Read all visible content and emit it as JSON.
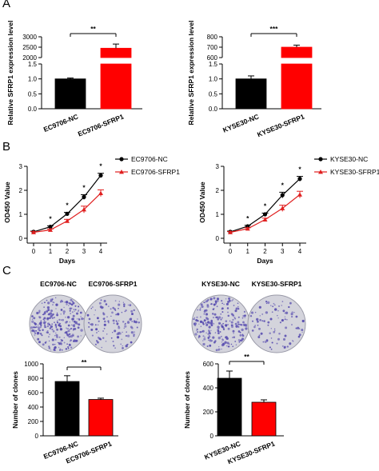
{
  "panels": {
    "a": "A",
    "b": "B",
    "c": "C"
  },
  "colors": {
    "nc": "#000000",
    "sfrp1": "#ff0000",
    "line_nc": "#000000",
    "line_sfrp1": "#e02020",
    "colony": "#5a4fb0",
    "dish": "#d4d4dc"
  },
  "chart_data": [
    {
      "id": "A-left",
      "type": "bar",
      "categories": [
        "EC9706-NC",
        "EC9706-SFRP1"
      ],
      "values": [
        1.0,
        2450
      ],
      "errors": [
        0.03,
        200
      ],
      "ylabel": "Relative SFRP1 expression level",
      "y_lower_ticks": [
        "0.0",
        "0.5",
        "1.0",
        "1.5"
      ],
      "y_upper_ticks": [
        "2000",
        "2500",
        "3000"
      ],
      "significance": "**"
    },
    {
      "id": "A-right",
      "type": "bar",
      "categories": [
        "KYSE30-NC",
        "KYSE30-SFRP1"
      ],
      "values": [
        1.0,
        700
      ],
      "errors": [
        0.1,
        20
      ],
      "ylabel": "Relative SFRP1 expression level",
      "y_lower_ticks": [
        "0.0",
        "0.5",
        "1.0",
        "1.5"
      ],
      "y_upper_ticks": [
        "600",
        "700",
        "800"
      ],
      "significance": "***"
    },
    {
      "id": "B-left",
      "type": "line",
      "x": [
        0,
        1,
        2,
        3,
        4
      ],
      "xlabel": "Days",
      "ylabel": "OD450 Value",
      "ylim": [
        0,
        3
      ],
      "y_ticks": [
        "0",
        "1",
        "2",
        "3"
      ],
      "x_ticks": [
        "0",
        "1",
        "2",
        "3",
        "4"
      ],
      "series": [
        {
          "name": "EC9706-NC",
          "values": [
            0.27,
            0.48,
            1.02,
            1.72,
            2.62
          ],
          "errors": [
            0.03,
            0.04,
            0.06,
            0.1,
            0.09
          ]
        },
        {
          "name": "EC9706-SFRP1",
          "values": [
            0.25,
            0.35,
            0.72,
            1.2,
            1.88
          ],
          "errors": [
            0.03,
            0.04,
            0.07,
            0.14,
            0.14
          ]
        }
      ],
      "stars": [
        "*",
        "*",
        "*",
        "*"
      ]
    },
    {
      "id": "B-right",
      "type": "line",
      "x": [
        0,
        1,
        2,
        3,
        4
      ],
      "xlabel": "Days",
      "ylabel": "OD450 Value",
      "ylim": [
        0,
        3
      ],
      "y_ticks": [
        "0",
        "1",
        "2",
        "3"
      ],
      "x_ticks": [
        "0",
        "1",
        "2",
        "3",
        "4"
      ],
      "series": [
        {
          "name": "KYSE30-NC",
          "values": [
            0.27,
            0.5,
            1.0,
            1.8,
            2.48
          ],
          "errors": [
            0.03,
            0.04,
            0.05,
            0.12,
            0.1
          ]
        },
        {
          "name": "KYSE30-SFRP1",
          "values": [
            0.25,
            0.4,
            0.78,
            1.25,
            1.82
          ],
          "errors": [
            0.03,
            0.04,
            0.06,
            0.13,
            0.14
          ]
        }
      ],
      "stars": [
        "*",
        "*",
        "*",
        "*"
      ]
    },
    {
      "id": "C-left",
      "type": "bar",
      "categories": [
        "EC9706-NC",
        "EC9706-SFRP1"
      ],
      "values": [
        755,
        505
      ],
      "errors": [
        80,
        18
      ],
      "ylabel": "Number of clones",
      "ylim": [
        0,
        1000
      ],
      "y_ticks": [
        "0",
        "200",
        "400",
        "600",
        "800",
        "1000"
      ],
      "significance": "**",
      "image_titles": [
        "EC9706-NC",
        "EC9706-SFRP1"
      ]
    },
    {
      "id": "C-right",
      "type": "bar",
      "categories": [
        "KYSE30-NC",
        "KYSE30-SFRP1"
      ],
      "values": [
        480,
        280
      ],
      "errors": [
        60,
        20
      ],
      "ylabel": "Number of clones",
      "ylim": [
        0,
        600
      ],
      "y_ticks": [
        "0",
        "200",
        "400",
        "600"
      ],
      "significance": "**",
      "image_titles": [
        "KYSE30-NC",
        "KYSE30-SFRP1"
      ]
    }
  ]
}
